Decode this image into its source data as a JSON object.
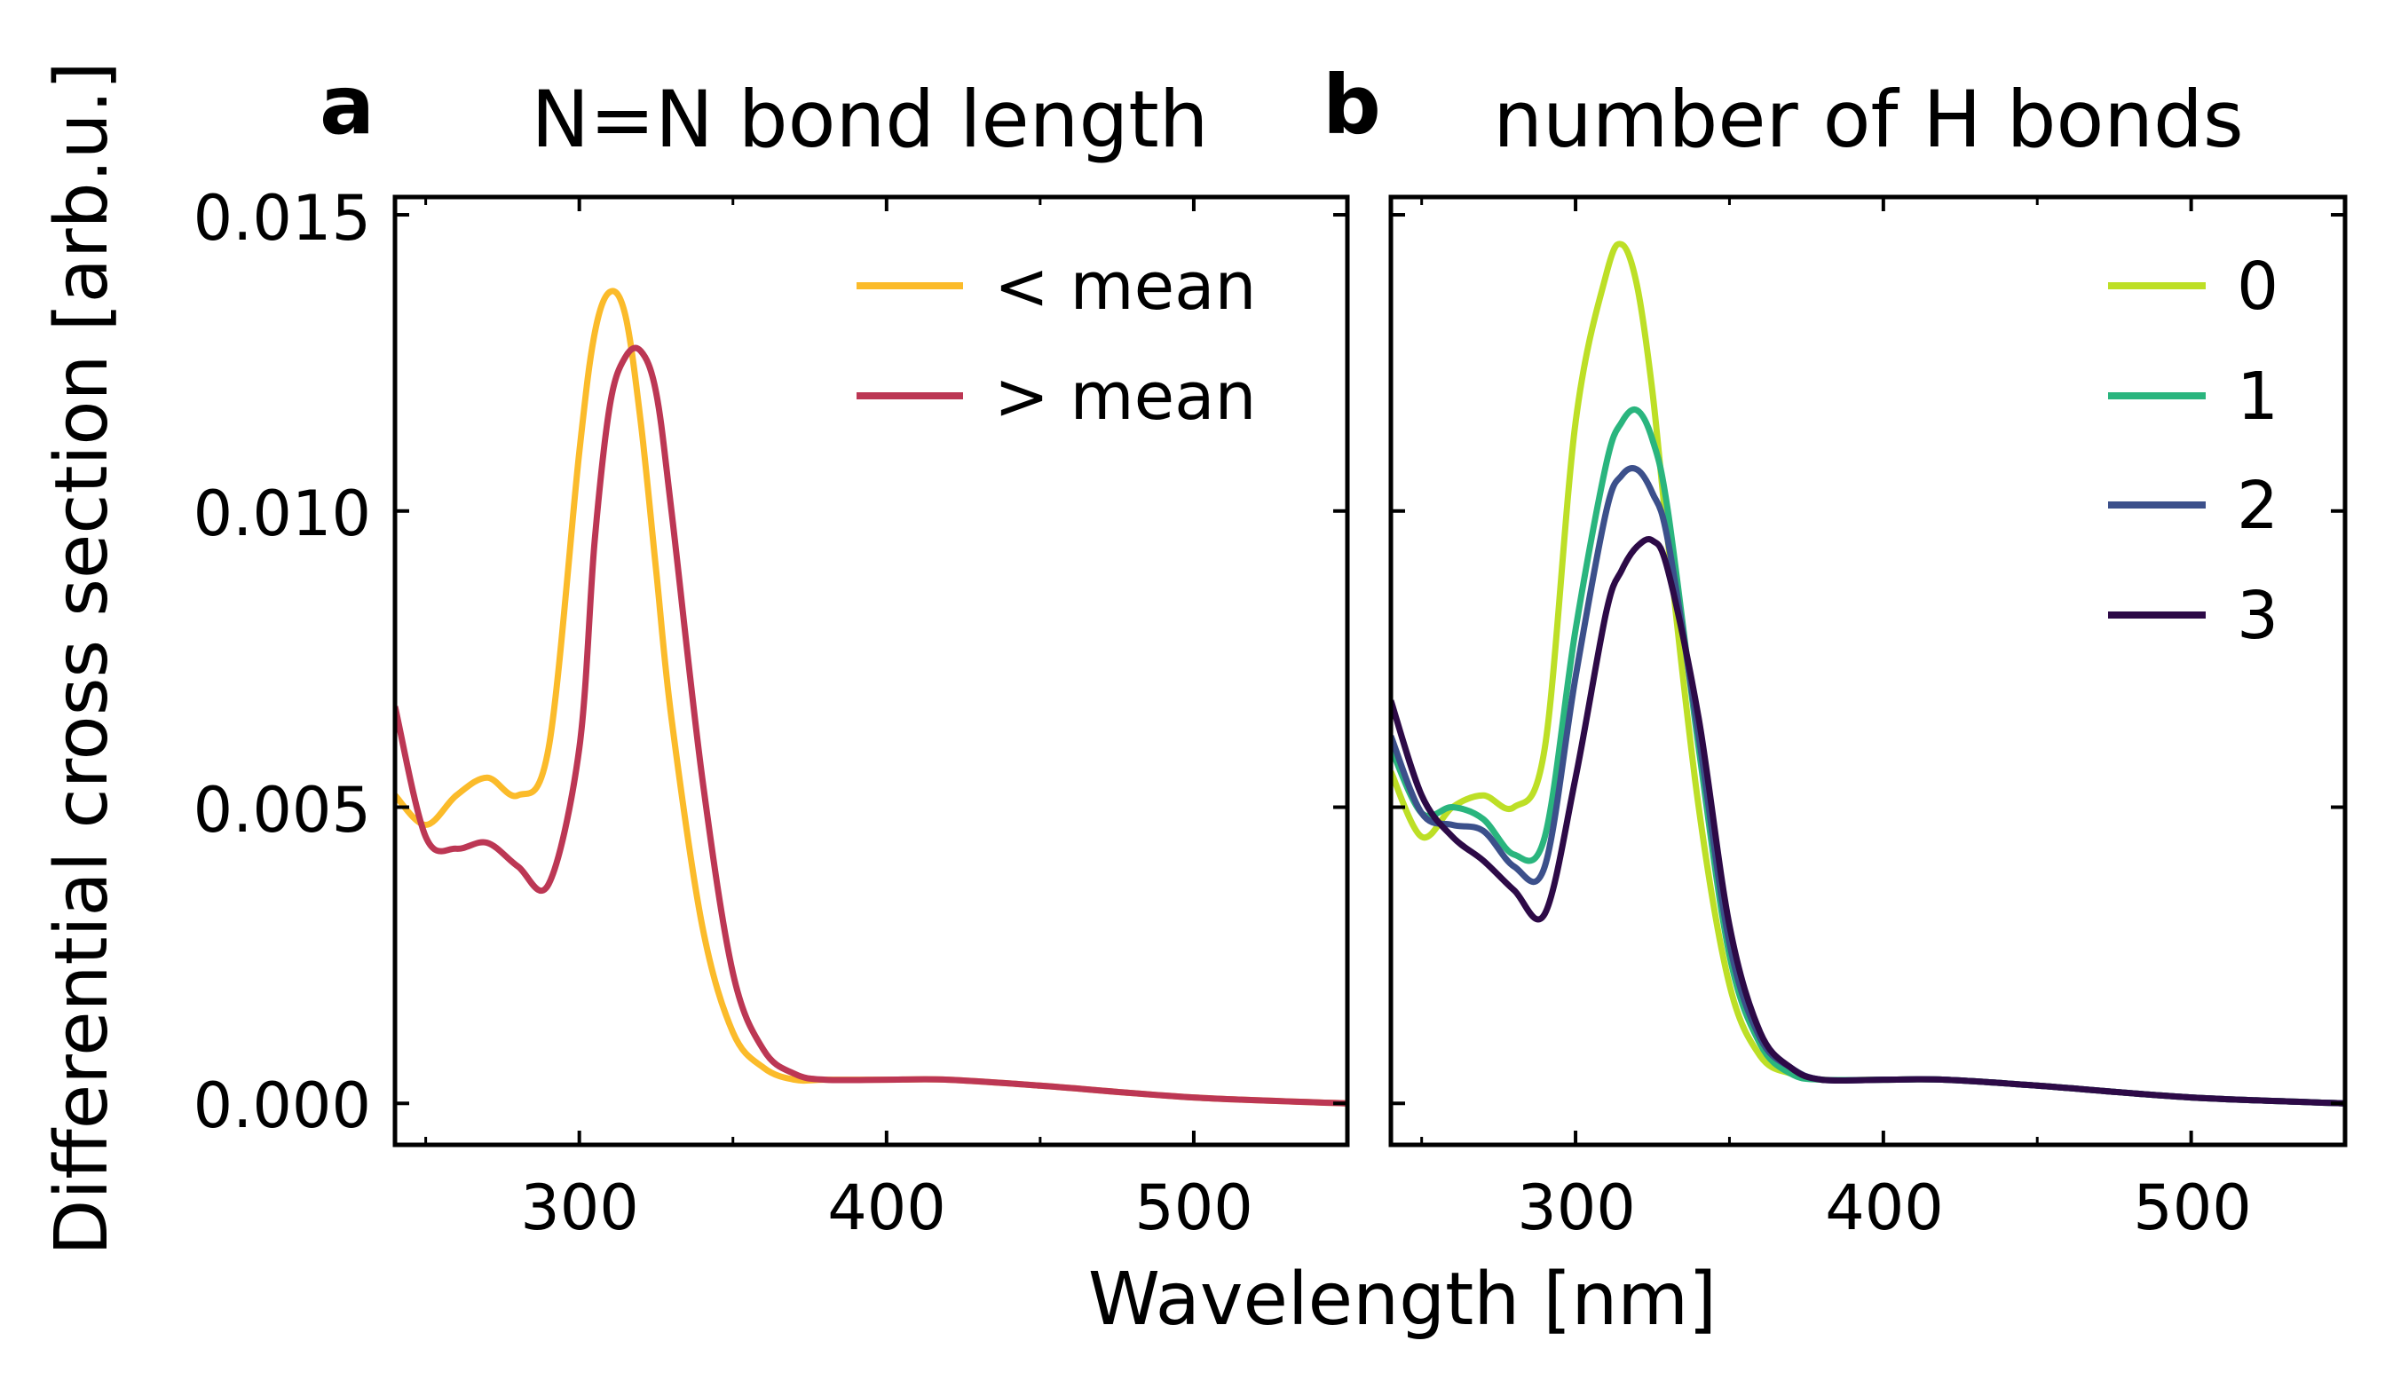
{
  "figure": {
    "ylabel": "Differential cross section [arb.u.]",
    "xlabel": "Wavelength [nm]",
    "xticks": [
      "300",
      "400",
      "500"
    ],
    "yticks": [
      "0.015",
      "0.010",
      "0.005",
      "0.000"
    ]
  },
  "chart_data": [
    {
      "type": "line",
      "panel": "a",
      "title": "N=N bond length",
      "xlabel": "Wavelength [nm]",
      "ylabel": "Differential cross section [arb.u.]",
      "xlim": [
        240,
        550
      ],
      "ylim": [
        -0.0007,
        0.0153
      ],
      "xticks": [
        300,
        400,
        500
      ],
      "yticks": [
        0.0,
        0.005,
        0.01,
        0.015
      ],
      "legend_position": "top-right",
      "grid": false,
      "x": [
        240,
        250,
        260,
        270,
        280,
        290,
        300,
        305,
        310,
        315,
        320,
        325,
        330,
        340,
        350,
        360,
        370,
        380,
        400,
        420,
        450,
        500,
        550
      ],
      "series": [
        {
          "name": "< mean",
          "color": "#fbbb2a",
          "values": [
            0.0052,
            0.0047,
            0.0052,
            0.0055,
            0.0052,
            0.006,
            0.011,
            0.013,
            0.0137,
            0.0133,
            0.0115,
            0.009,
            0.0065,
            0.003,
            0.0012,
            0.0006,
            0.0004,
            0.0004,
            0.0004,
            0.0004,
            0.0003,
            0.0001,
            0.0
          ]
        },
        {
          "name": "> mean",
          "color": "#bc3754",
          "values": [
            0.0067,
            0.0045,
            0.0043,
            0.0044,
            0.004,
            0.0037,
            0.006,
            0.0095,
            0.0118,
            0.0126,
            0.0127,
            0.012,
            0.01,
            0.0055,
            0.0022,
            0.0009,
            0.0005,
            0.0004,
            0.0004,
            0.0004,
            0.0003,
            0.0001,
            0.0
          ]
        }
      ]
    },
    {
      "type": "line",
      "panel": "b",
      "title": "number of H bonds",
      "xlabel": "Wavelength [nm]",
      "ylabel": "Differential cross section [arb.u.]",
      "xlim": [
        240,
        550
      ],
      "ylim": [
        -0.0007,
        0.0153
      ],
      "xticks": [
        300,
        400,
        500
      ],
      "yticks": [
        0.0,
        0.005,
        0.01,
        0.015
      ],
      "legend_position": "top-right",
      "grid": false,
      "x": [
        240,
        250,
        260,
        270,
        280,
        290,
        300,
        310,
        315,
        320,
        325,
        330,
        340,
        350,
        360,
        370,
        380,
        400,
        420,
        450,
        500,
        550
      ],
      "series": [
        {
          "name": "0",
          "color": "#bddf26",
          "values": [
            0.0056,
            0.0045,
            0.005,
            0.0052,
            0.005,
            0.006,
            0.0115,
            0.014,
            0.0145,
            0.0138,
            0.012,
            0.0095,
            0.005,
            0.002,
            0.0008,
            0.0005,
            0.0004,
            0.0004,
            0.0004,
            0.0003,
            0.0001,
            0.0
          ]
        },
        {
          "name": "1",
          "color": "#2ab57e",
          "values": [
            0.006,
            0.0049,
            0.005,
            0.0048,
            0.0042,
            0.0045,
            0.008,
            0.0108,
            0.0115,
            0.0117,
            0.0112,
            0.01,
            0.006,
            0.0025,
            0.001,
            0.0005,
            0.0004,
            0.0004,
            0.0004,
            0.0003,
            0.0001,
            0.0
          ]
        },
        {
          "name": "2",
          "color": "#3c508b",
          "values": [
            0.0062,
            0.0049,
            0.0047,
            0.0046,
            0.004,
            0.004,
            0.0072,
            0.01,
            0.0106,
            0.0107,
            0.0103,
            0.0095,
            0.0062,
            0.0027,
            0.0011,
            0.0006,
            0.0004,
            0.0004,
            0.0004,
            0.0003,
            0.0001,
            0.0
          ]
        },
        {
          "name": "3",
          "color": "#2d0a47",
          "values": [
            0.0068,
            0.0052,
            0.0045,
            0.0041,
            0.0036,
            0.0032,
            0.0055,
            0.0083,
            0.009,
            0.0094,
            0.0095,
            0.009,
            0.0065,
            0.003,
            0.0012,
            0.0006,
            0.0004,
            0.0004,
            0.0004,
            0.0003,
            0.0001,
            0.0
          ]
        }
      ]
    }
  ]
}
